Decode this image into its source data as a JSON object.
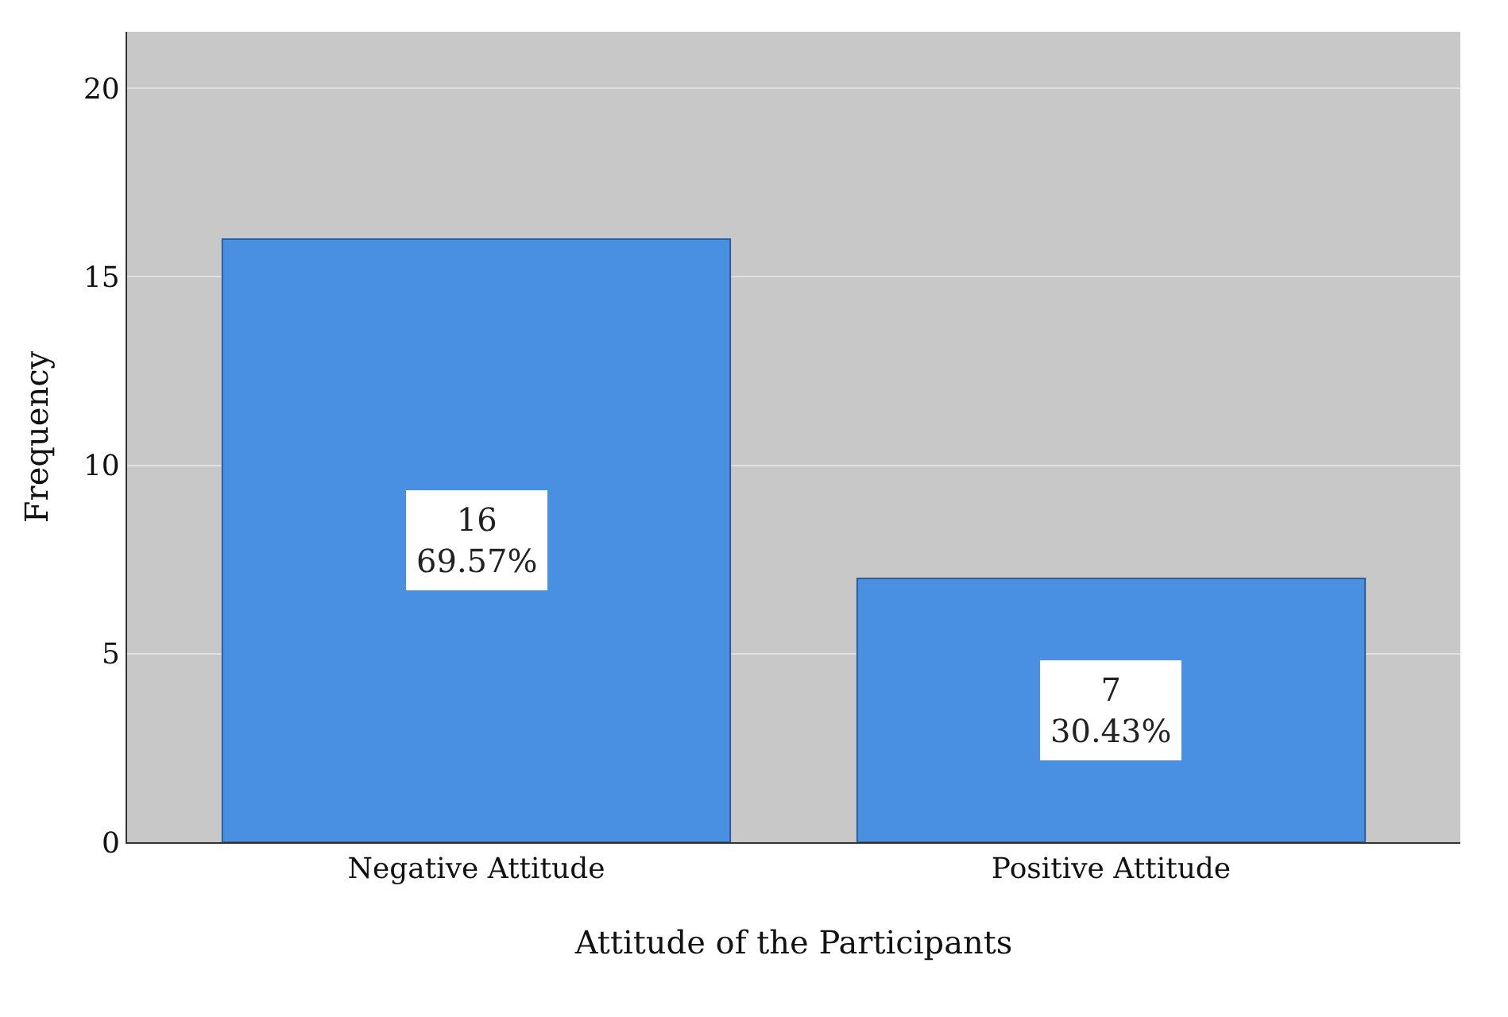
{
  "chart_data": {
    "type": "bar",
    "xlabel": "Attitude of the Participants",
    "ylabel": "Frequency",
    "categories": [
      "Negative Attitude",
      "Positive Attitude"
    ],
    "values": [
      16,
      7
    ],
    "value_labels": [
      "16\n69.57%",
      "7\n30.43%"
    ],
    "color": "#4a90e2",
    "ylim": [
      0,
      21.5
    ],
    "yticks": [
      0,
      5,
      10,
      15,
      20
    ],
    "grid": "y"
  }
}
